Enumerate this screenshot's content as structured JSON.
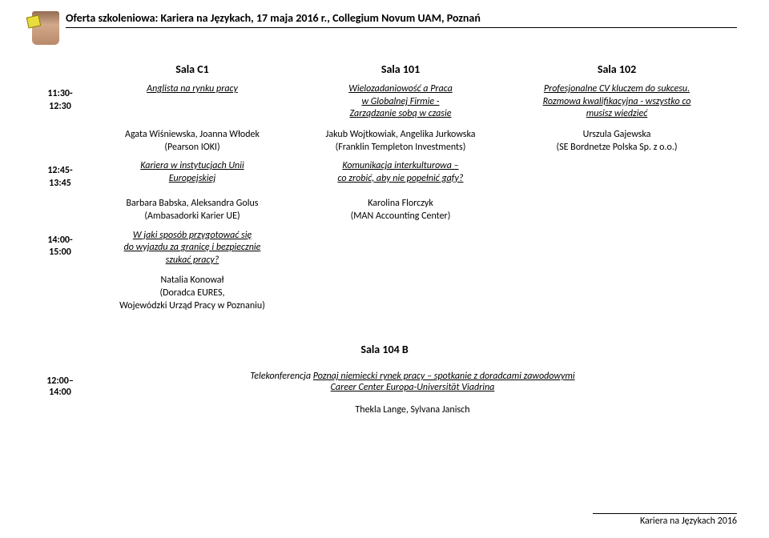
{
  "header": {
    "title": "Oferta szkoleniowa: Kariera na Językach, 17 maja 2016 r., Collegium Novum UAM, Poznań"
  },
  "rooms": {
    "c1": "Sala C1",
    "r101": "Sala 101",
    "r102": "Sala 102",
    "r104b": "Sala 104 B"
  },
  "rows": [
    {
      "time": "11:30-\n12:30",
      "c1": {
        "title": "Anglista na rynku pracy"
      },
      "r101": {
        "title": "Wielozadaniowość a Praca\nw Globalnej Firmie -\nZarządzanie sobą w czasie"
      },
      "r102": {
        "title": "Profesjonalne CV kluczem do sukcesu.\nRozmowa kwalifikacyjna - wszystko co\nmusisz wiedzieć"
      }
    },
    {
      "time": "",
      "c1": {
        "speakers": "Agata Wiśniewska, Joanna Włodek\n(Pearson IOKI)"
      },
      "r101": {
        "speakers": "Jakub Wojtkowiak, Angelika Jurkowska\n(Franklin Templeton Investments)"
      },
      "r102": {
        "speakers": "Urszula Gajewska\n(SE Bordnetze Polska Sp. z o.o.)"
      }
    },
    {
      "time": "12:45-\n13:45",
      "c1": {
        "title": "Kariera w instytucjach Unii\nEuropejskiej"
      },
      "r101": {
        "title": "Komunikacja interkulturowa –\nco zrobić, aby nie popełnić gafy?"
      },
      "r102": {}
    },
    {
      "time": "",
      "c1": {
        "speakers": "Barbara Babska, Aleksandra Golus\n(Ambasadorki Karier UE)"
      },
      "r101": {
        "speakers": "Karolina Florczyk\n(MAN Accounting Center)"
      },
      "r102": {}
    },
    {
      "time": "14:00-\n15:00",
      "c1": {
        "title": "W jaki sposób przygotować się\ndo wyjazdu za granicę i bezpiecznie\nszukać pracy?"
      },
      "r101": {},
      "r102": {}
    },
    {
      "time": "",
      "c1": {
        "speakers": "Natalia Konował\n(Doradca EURES,\nWojewódzki Urząd Pracy w Poznaniu)"
      },
      "r101": {},
      "r102": {}
    }
  ],
  "bottom": {
    "time": "12:00–\n14:00",
    "line1_prefix": "Telekonferencja ",
    "line1_underlined": "Poznaj niemiecki rynek pracy – spotkanie z  doradcami zawodowymi",
    "line2_underlined": "Career Center Europa-Universität Viadrina",
    "speakers": "Thekla Lange, Sylvana Janisch"
  },
  "footer": "Kariera na Językach 2016"
}
